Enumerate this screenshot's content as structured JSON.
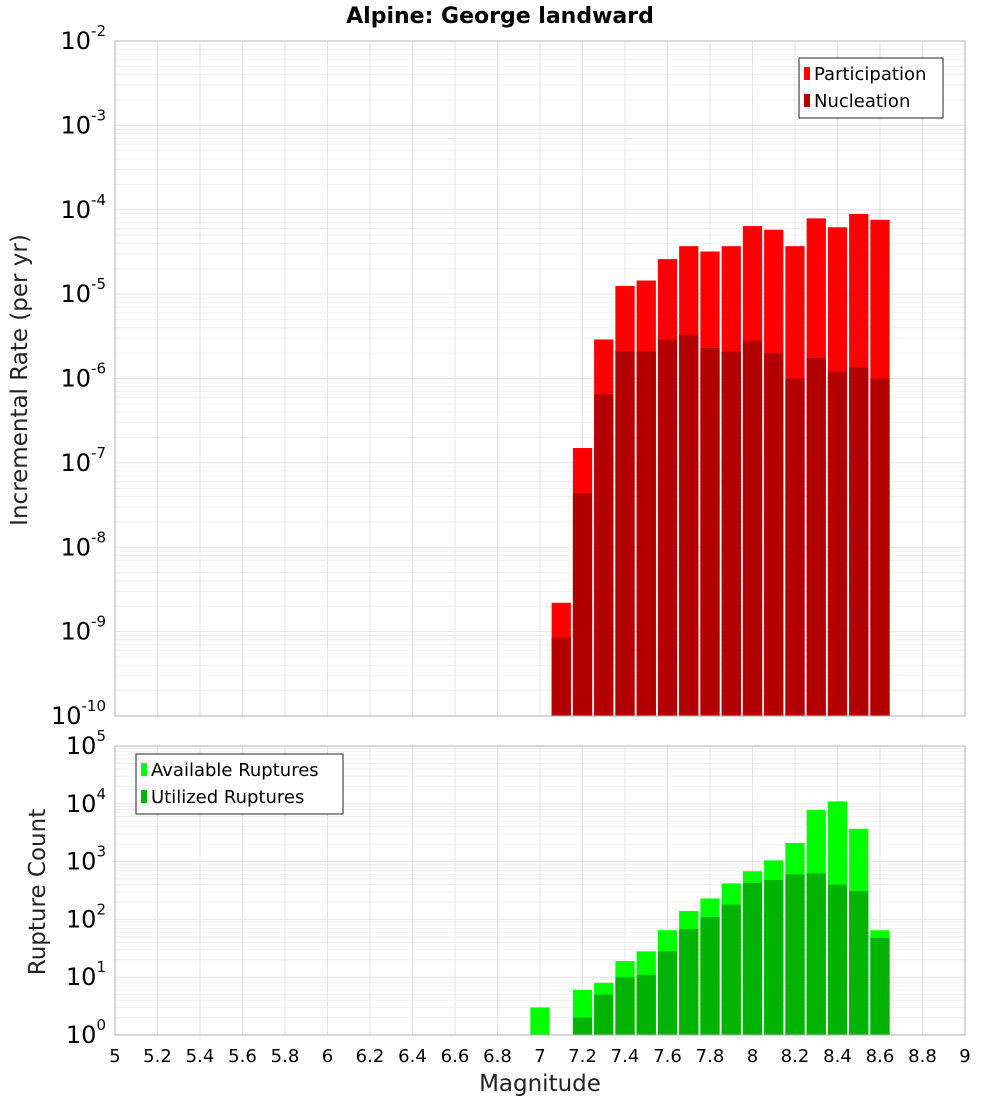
{
  "chart_data": [
    {
      "type": "bar",
      "title": "Alpine: George landward",
      "ylabel": "Incremental Rate (per yr)",
      "xlabel": "",
      "y_scale": "log",
      "ylim_exp": [
        -10,
        -2
      ],
      "xlim": [
        5,
        9
      ],
      "grid": true,
      "legend_position": "top-right",
      "bar_width": 0.1,
      "overlay": true,
      "x": [
        7.1,
        7.2,
        7.3,
        7.4,
        7.5,
        7.6,
        7.7,
        7.8,
        7.9,
        8.0,
        8.1,
        8.2,
        8.3,
        8.4,
        8.5,
        8.6
      ],
      "series": [
        {
          "name": "Participation",
          "color": "#ff0000",
          "values": [
            2.2e-09,
            1.5e-07,
            2.9e-06,
            1.25e-05,
            1.45e-05,
            2.6e-05,
            3.7e-05,
            3.2e-05,
            3.7e-05,
            6.4e-05,
            5.8e-05,
            3.7e-05,
            7.9e-05,
            6.2e-05,
            8.9e-05,
            7.6e-05
          ]
        },
        {
          "name": "Nucleation",
          "color": "#b30000",
          "values": [
            8.5e-10,
            4.4e-08,
            6.5e-07,
            2.1e-06,
            2.1e-06,
            2.9e-06,
            3.3e-06,
            2.3e-06,
            2.1e-06,
            2.8e-06,
            2e-06,
            1e-06,
            1.75e-06,
            1.2e-06,
            1.35e-06,
            1e-06
          ]
        }
      ]
    },
    {
      "type": "bar",
      "title": "",
      "ylabel": "Rupture Count",
      "xlabel": "Magnitude",
      "y_scale": "log",
      "ylim_exp": [
        0,
        5
      ],
      "xlim": [
        5,
        9
      ],
      "grid": true,
      "legend_position": "top-left",
      "bar_width": 0.1,
      "overlay": true,
      "x": [
        6.7,
        6.8,
        6.9,
        7.0,
        7.1,
        7.2,
        7.3,
        7.4,
        7.5,
        7.6,
        7.7,
        7.8,
        7.9,
        8.0,
        8.1,
        8.2,
        8.3,
        8.4,
        8.5,
        8.6
      ],
      "series": [
        {
          "name": "Available Ruptures",
          "color": "#00ff00",
          "values": [
            1,
            0,
            1,
            3,
            1,
            6,
            8,
            19,
            28,
            65,
            140,
            230,
            420,
            680,
            1050,
            2100,
            7800,
            11000,
            3700,
            65
          ]
        },
        {
          "name": "Utilized Ruptures",
          "color": "#00b300",
          "values": [
            0,
            0,
            0,
            0,
            1,
            2,
            5,
            10,
            11,
            28,
            68,
            110,
            180,
            430,
            480,
            600,
            630,
            400,
            310,
            48
          ]
        }
      ]
    }
  ],
  "x_ticks": [
    "5",
    "5.2",
    "5.4",
    "5.6",
    "5.8",
    "6",
    "6.2",
    "6.4",
    "6.6",
    "6.8",
    "7",
    "7.2",
    "7.4",
    "7.6",
    "7.8",
    "8",
    "8.2",
    "8.4",
    "8.6",
    "8.8",
    "9"
  ]
}
